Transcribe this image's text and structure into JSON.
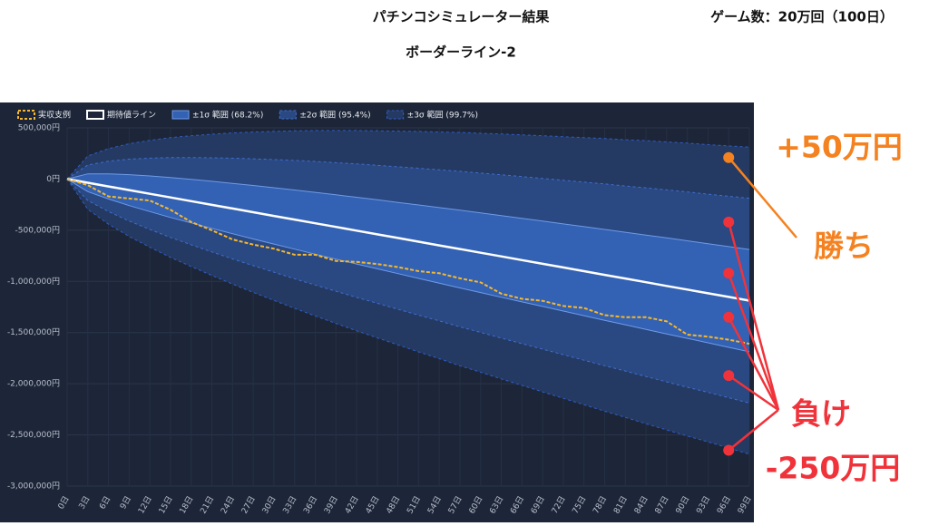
{
  "header": {
    "title": "パチンコシミュレーター結果",
    "games": "ゲーム数：20万回（100日）",
    "subtitle": "ボーダーライン-2"
  },
  "chart_data": {
    "type": "band-line",
    "x": [
      0,
      3,
      6,
      9,
      12,
      15,
      18,
      21,
      24,
      27,
      30,
      33,
      36,
      39,
      42,
      45,
      48,
      51,
      54,
      57,
      60,
      63,
      66,
      69,
      72,
      75,
      78,
      81,
      84,
      87,
      90,
      93,
      96,
      99
    ],
    "xlim": [
      0,
      99
    ],
    "xticks": [
      {
        "value": 0,
        "label": "0日"
      },
      {
        "value": 3,
        "label": "3日"
      },
      {
        "value": 6,
        "label": "6日"
      },
      {
        "value": 9,
        "label": "9日"
      },
      {
        "value": 12,
        "label": "12日"
      },
      {
        "value": 15,
        "label": "15日"
      },
      {
        "value": 18,
        "label": "18日"
      },
      {
        "value": 21,
        "label": "21日"
      },
      {
        "value": 24,
        "label": "24日"
      },
      {
        "value": 27,
        "label": "27日"
      },
      {
        "value": 30,
        "label": "30日"
      },
      {
        "value": 33,
        "label": "33日"
      },
      {
        "value": 36,
        "label": "36日"
      },
      {
        "value": 39,
        "label": "39日"
      },
      {
        "value": 42,
        "label": "42日"
      },
      {
        "value": 45,
        "label": "45日"
      },
      {
        "value": 48,
        "label": "48日"
      },
      {
        "value": 51,
        "label": "51日"
      },
      {
        "value": 54,
        "label": "54日"
      },
      {
        "value": 57,
        "label": "57日"
      },
      {
        "value": 60,
        "label": "60日"
      },
      {
        "value": 63,
        "label": "63日"
      },
      {
        "value": 66,
        "label": "66日"
      },
      {
        "value": 69,
        "label": "69日"
      },
      {
        "value": 72,
        "label": "72日"
      },
      {
        "value": 75,
        "label": "75日"
      },
      {
        "value": 78,
        "label": "78日"
      },
      {
        "value": 81,
        "label": "81日"
      },
      {
        "value": 84,
        "label": "84日"
      },
      {
        "value": 87,
        "label": "87日"
      },
      {
        "value": 90,
        "label": "90日"
      },
      {
        "value": 93,
        "label": "93日"
      },
      {
        "value": 96,
        "label": "96日"
      },
      {
        "value": 99,
        "label": "99日"
      }
    ],
    "ylim": [
      -3000000,
      500000
    ],
    "yticks": [
      {
        "value": 500000,
        "label": "500,000円"
      },
      {
        "value": 0,
        "label": "0円"
      },
      {
        "value": -500000,
        "label": "-500,000円"
      },
      {
        "value": -1000000,
        "label": "-1,000,000円"
      },
      {
        "value": -1500000,
        "label": "-1,500,000円"
      },
      {
        "value": -2000000,
        "label": "-2,000,000円"
      },
      {
        "value": -2500000,
        "label": "-2,500,000円"
      },
      {
        "value": -3000000,
        "label": "-3,000,000円"
      }
    ],
    "grid": true,
    "series": [
      {
        "name": "実収支例",
        "kind": "line",
        "dashed": true,
        "color": "#f5b82e",
        "values": [
          0,
          -60000,
          -170000,
          -190000,
          -210000,
          -300000,
          -420000,
          -500000,
          -590000,
          -640000,
          -680000,
          -740000,
          -740000,
          -800000,
          -810000,
          -830000,
          -860000,
          -900000,
          -920000,
          -970000,
          -1010000,
          -1120000,
          -1170000,
          -1190000,
          -1240000,
          -1260000,
          -1330000,
          -1350000,
          -1350000,
          -1390000,
          -1520000,
          -1540000,
          -1570000,
          -1610000
        ]
      },
      {
        "name": "期待値ライン",
        "kind": "line",
        "dashed": false,
        "color": "#ffffff",
        "values": [
          0,
          -36000,
          -72000,
          -108000,
          -144000,
          -180000,
          -216000,
          -252000,
          -288000,
          -324000,
          -360000,
          -396000,
          -432000,
          -468000,
          -504000,
          -540000,
          -576000,
          -612000,
          -648000,
          -684000,
          -720000,
          -756000,
          -792000,
          -828000,
          -864000,
          -900000,
          -936000,
          -972000,
          -1008000,
          -1044000,
          -1080000,
          -1116000,
          -1152000,
          -1188000
        ]
      },
      {
        "name": "±1σ 範囲 (68.2%)",
        "kind": "band",
        "dashed": false,
        "color": "#6f9be6",
        "fill": "#3361b3",
        "values": [
          0,
          51000,
          51000,
          43000,
          30000,
          15000,
          -3000,
          -22000,
          -42000,
          -63000,
          -85000,
          -107000,
          -130000,
          -154000,
          -178000,
          -203000,
          -228000,
          -253000,
          -279000,
          -304000,
          -331000,
          -357000,
          -384000,
          -411000,
          -438000,
          -465000,
          -492000,
          -520000,
          -547000,
          -575000,
          -603000,
          -632000,
          -660000,
          -688000
        ],
        "lower": [
          0,
          -123000,
          -195000,
          -259000,
          -318000,
          -375000,
          -429000,
          -482000,
          -534000,
          -585000,
          -635000,
          -685000,
          -734000,
          -782000,
          -830000,
          -877000,
          -924000,
          -971000,
          -1017000,
          -1064000,
          -1109000,
          -1155000,
          -1200000,
          -1245000,
          -1290000,
          -1335000,
          -1380000,
          -1424000,
          -1469000,
          -1513000,
          -1557000,
          -1600000,
          -1644000,
          -1688000
        ]
      },
      {
        "name": "±2σ 範囲 (95.4%)",
        "kind": "band",
        "dashed": true,
        "color": "#3f6fd0",
        "fill": "#2a4882",
        "values": [
          0,
          138000,
          174000,
          194000,
          204000,
          210000,
          210000,
          208000,
          204000,
          198000,
          190000,
          182000,
          172000,
          160000,
          148000,
          134000,
          120000,
          106000,
          90000,
          76000,
          58000,
          42000,
          24000,
          6000,
          -12000,
          -30000,
          -48000,
          -68000,
          -86000,
          -106000,
          -126000,
          -148000,
          -168000,
          -188000
        ],
        "lower": [
          0,
          -210000,
          -318000,
          -410000,
          -492000,
          -570000,
          -642000,
          -712000,
          -780000,
          -846000,
          -910000,
          -974000,
          -1036000,
          -1096000,
          -1156000,
          -1214000,
          -1272000,
          -1330000,
          -1386000,
          -1444000,
          -1498000,
          -1554000,
          -1608000,
          -1662000,
          -1716000,
          -1770000,
          -1824000,
          -1876000,
          -1930000,
          -1982000,
          -2034000,
          -2084000,
          -2136000,
          -2188000
        ]
      },
      {
        "name": "±3σ 範囲 (99.7%)",
        "kind": "band",
        "dashed": true,
        "color": "#2f5cc8",
        "fill": "#243a62",
        "values": [
          0,
          225000,
          297000,
          345000,
          378000,
          405000,
          423000,
          438000,
          450000,
          459000,
          465000,
          471000,
          474000,
          474000,
          474000,
          471000,
          468000,
          465000,
          459000,
          456000,
          447000,
          441000,
          432000,
          423000,
          414000,
          405000,
          396000,
          384000,
          375000,
          363000,
          351000,
          336000,
          324000,
          312000
        ],
        "lower": [
          0,
          -297000,
          -441000,
          -561000,
          -666000,
          -765000,
          -855000,
          -942000,
          -1026000,
          -1107000,
          -1185000,
          -1263000,
          -1338000,
          -1410000,
          -1482000,
          -1551000,
          -1620000,
          -1689000,
          -1755000,
          -1824000,
          -1887000,
          -1953000,
          -2016000,
          -2079000,
          -2142000,
          -2205000,
          -2268000,
          -2328000,
          -2391000,
          -2451000,
          -2511000,
          -2568000,
          -2628000,
          -2688000
        ]
      }
    ],
    "outcomes": {
      "x": 96,
      "win_amount": "+50万円",
      "win_label": "勝ち",
      "lose_label": "負け",
      "lose_amount": "-250万円",
      "points": [
        {
          "value": 210000,
          "color": "#f58220"
        },
        {
          "value": -420000,
          "color": "#f0333a"
        },
        {
          "value": -920000,
          "color": "#f0333a"
        },
        {
          "value": -1350000,
          "color": "#f0333a"
        },
        {
          "value": -1920000,
          "color": "#f0333a"
        },
        {
          "value": -2650000,
          "color": "#f0333a"
        }
      ]
    }
  }
}
